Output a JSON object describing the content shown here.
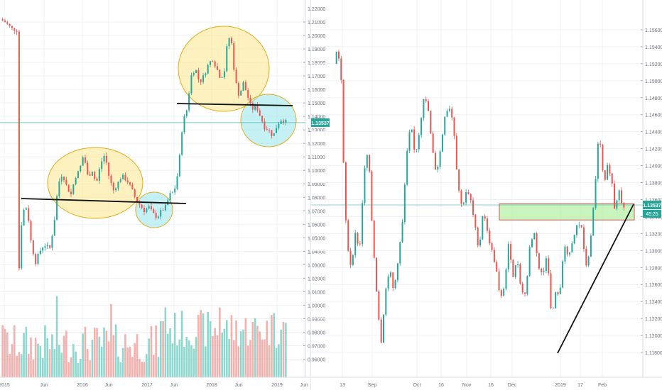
{
  "colors": {
    "up": "#26a69a",
    "down": "#ef5350",
    "up_volume": "#7fd3c9",
    "down_volume": "#f4a6a4",
    "price_line": "#26a69a",
    "price_label_bg": "#26a69a",
    "grid": "#eef0f3",
    "axis_text": "#6b6f78",
    "zone_fill": "#b8f0a8",
    "zone_border": "#d9534f",
    "highlight_yellow": "#fbe88a",
    "highlight_yellow_border": "#e6a817",
    "highlight_cyan": "#9fe7ee",
    "highlight_cyan_border": "#e6a817",
    "trendline": "#111111"
  },
  "chart_data": [
    {
      "type": "candlestick",
      "name": "weekly",
      "x_ticks": [
        "2015",
        "Jun",
        "2016",
        "Jun",
        "2017",
        "Jun",
        "2018",
        "Jun",
        "2019",
        "Jun"
      ],
      "y_ticks": [
        "1.21000",
        "1.20000",
        "1.19000",
        "1.18000",
        "1.17000",
        "1.16000",
        "1.15000",
        "1.14000",
        "1.13000",
        "1.12000",
        "1.11000",
        "1.10000",
        "1.09000",
        "1.08000",
        "1.07000",
        "1.06000",
        "1.05000",
        "1.04000",
        "1.03000",
        "1.02000",
        "1.01000",
        "1.00000",
        "0.99000",
        "0.98000",
        "0.97000",
        "0.96000"
      ],
      "y_tick_top": "1.22000",
      "ylim": [
        0.955,
        1.22
      ],
      "current_price": "1.13537",
      "volume": true,
      "grid": true,
      "path": [
        [
          0,
          1.212
        ],
        [
          7,
          1.21
        ],
        [
          16,
          1.205
        ],
        [
          24,
          1.204
        ],
        [
          25,
          1.13
        ],
        [
          26,
          0.985
        ],
        [
          27,
          1.045
        ],
        [
          32,
          1.07
        ],
        [
          38,
          1.073
        ],
        [
          44,
          1.045
        ],
        [
          50,
          1.032
        ],
        [
          56,
          1.04
        ],
        [
          62,
          1.045
        ],
        [
          70,
          1.042
        ],
        [
          76,
          1.06
        ],
        [
          82,
          1.09
        ],
        [
          88,
          1.098
        ],
        [
          94,
          1.088
        ],
        [
          100,
          1.082
        ],
        [
          106,
          1.095
        ],
        [
          112,
          1.1
        ],
        [
          118,
          1.112
        ],
        [
          124,
          1.095
        ],
        [
          130,
          1.1
        ],
        [
          136,
          1.09
        ],
        [
          142,
          1.105
        ],
        [
          148,
          1.112
        ],
        [
          154,
          1.095
        ],
        [
          160,
          1.085
        ],
        [
          166,
          1.09
        ],
        [
          172,
          1.096
        ],
        [
          180,
          1.092
        ],
        [
          186,
          1.086
        ],
        [
          192,
          1.078
        ],
        [
          198,
          1.074
        ],
        [
          204,
          1.07
        ],
        [
          210,
          1.073
        ],
        [
          216,
          1.068
        ],
        [
          222,
          1.065
        ],
        [
          228,
          1.07
        ],
        [
          234,
          1.073
        ],
        [
          240,
          1.082
        ],
        [
          246,
          1.084
        ],
        [
          252,
          1.1
        ],
        [
          258,
          1.135
        ],
        [
          264,
          1.145
        ],
        [
          270,
          1.17
        ],
        [
          276,
          1.176
        ],
        [
          282,
          1.165
        ],
        [
          288,
          1.17
        ],
        [
          294,
          1.178
        ],
        [
          300,
          1.183
        ],
        [
          306,
          1.176
        ],
        [
          312,
          1.168
        ],
        [
          318,
          1.175
        ],
        [
          322,
          1.2
        ],
        [
          327,
          1.195
        ],
        [
          332,
          1.168
        ],
        [
          338,
          1.155
        ],
        [
          344,
          1.165
        ],
        [
          350,
          1.155
        ],
        [
          356,
          1.145
        ],
        [
          362,
          1.148
        ],
        [
          368,
          1.14
        ],
        [
          374,
          1.132
        ],
        [
          380,
          1.13
        ],
        [
          386,
          1.125
        ],
        [
          392,
          1.134
        ],
        [
          398,
          1.138
        ],
        [
          404,
          1.136
        ]
      ],
      "annotations": [
        {
          "shape": "ellipse",
          "color": "yellow",
          "around_date": "2016"
        },
        {
          "shape": "ellipse",
          "color": "cyan",
          "around_date": "2016-12"
        },
        {
          "shape": "ellipse",
          "color": "yellow",
          "around_date": "2018-03"
        },
        {
          "shape": "ellipse",
          "color": "cyan",
          "around_date": "2018-10"
        },
        {
          "shape": "line",
          "from": [
            "2015-01",
            1.0795
          ],
          "to": [
            "2017-05",
            1.0765
          ]
        },
        {
          "shape": "line",
          "from": [
            "2018-01",
            1.149
          ],
          "to": [
            "2018-12",
            1.1475
          ]
        }
      ]
    },
    {
      "type": "candlestick",
      "name": "daily",
      "x_ticks": [
        "13",
        "Sep",
        "Oct",
        "16",
        "Nov",
        "16",
        "Dec",
        "2019",
        "17",
        "Feb"
      ],
      "y_ticks": [
        "1.15600",
        "1.15400",
        "1.15200",
        "1.15000",
        "1.14800",
        "1.14600",
        "1.14400",
        "1.14200",
        "1.14000",
        "1.13800",
        "1.13600",
        "1.13400",
        "1.13200",
        "1.13000",
        "1.12800",
        "1.12600",
        "1.12400",
        "1.12200",
        "1.12000",
        "1.11800"
      ],
      "ylim": [
        1.117,
        1.1575
      ],
      "current_price": "1.13537",
      "countdown": "45:25",
      "grid": true,
      "path": [
        [
          0,
          1.152
        ],
        [
          5,
          1.154
        ],
        [
          10,
          1.15
        ],
        [
          14,
          1.138
        ],
        [
          18,
          1.131
        ],
        [
          24,
          1.128
        ],
        [
          30,
          1.132
        ],
        [
          36,
          1.13
        ],
        [
          42,
          1.139
        ],
        [
          48,
          1.142
        ],
        [
          54,
          1.132
        ],
        [
          60,
          1.125
        ],
        [
          66,
          1.119
        ],
        [
          72,
          1.125
        ],
        [
          78,
          1.128
        ],
        [
          84,
          1.125
        ],
        [
          90,
          1.129
        ],
        [
          96,
          1.133
        ],
        [
          102,
          1.141
        ],
        [
          108,
          1.145
        ],
        [
          114,
          1.141
        ],
        [
          120,
          1.144
        ],
        [
          126,
          1.148
        ],
        [
          132,
          1.147
        ],
        [
          138,
          1.142
        ],
        [
          144,
          1.139
        ],
        [
          150,
          1.142
        ],
        [
          156,
          1.146
        ],
        [
          162,
          1.147
        ],
        [
          168,
          1.145
        ],
        [
          174,
          1.138
        ],
        [
          180,
          1.135
        ],
        [
          186,
          1.137
        ],
        [
          192,
          1.136
        ],
        [
          198,
          1.133
        ],
        [
          204,
          1.13
        ],
        [
          210,
          1.135
        ],
        [
          216,
          1.132
        ],
        [
          222,
          1.13
        ],
        [
          228,
          1.128
        ],
        [
          234,
          1.124
        ],
        [
          240,
          1.126
        ],
        [
          246,
          1.131
        ],
        [
          252,
          1.127
        ],
        [
          258,
          1.129
        ],
        [
          264,
          1.125
        ],
        [
          270,
          1.125
        ],
        [
          276,
          1.131
        ],
        [
          282,
          1.132
        ],
        [
          288,
          1.128
        ],
        [
          294,
          1.127
        ],
        [
          300,
          1.13
        ],
        [
          306,
          1.122
        ],
        [
          312,
          1.125
        ],
        [
          318,
          1.125
        ],
        [
          324,
          1.131
        ],
        [
          330,
          1.129
        ],
        [
          336,
          1.131
        ],
        [
          342,
          1.133
        ],
        [
          348,
          1.133
        ],
        [
          354,
          1.128
        ],
        [
          360,
          1.13
        ],
        [
          366,
          1.136
        ],
        [
          372,
          1.143
        ],
        [
          376,
          1.142
        ],
        [
          380,
          1.137
        ],
        [
          384,
          1.14
        ],
        [
          390,
          1.139
        ],
        [
          396,
          1.134
        ],
        [
          400,
          1.138
        ],
        [
          404,
          1.136
        ],
        [
          408,
          1.135
        ]
      ],
      "annotations": [
        {
          "shape": "rectangle",
          "color": "green",
          "y_range": [
            1.1336,
            1.1355
          ]
        },
        {
          "shape": "line",
          "from": [
            "2019-01-01",
            1.1188
          ],
          "to": [
            "2019-02-20",
            1.1357
          ]
        }
      ]
    }
  ]
}
